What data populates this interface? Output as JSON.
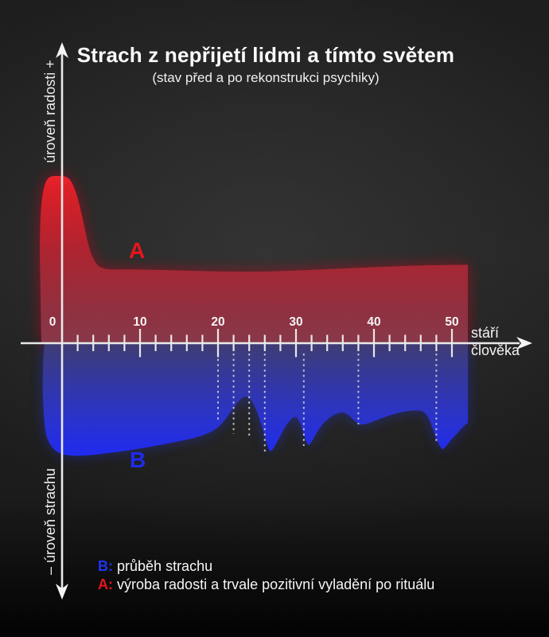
{
  "title": "Strach z nepřijetí lidmi a tímto světem",
  "subtitle": "(stav před a po rekonstrukci psychiky)",
  "axes": {
    "y_top_label": "úroveň radosti +",
    "y_bottom_label": "– úroveň strachu",
    "x_label_line1": "stáří",
    "x_label_line2": "člověka",
    "x_ticks": [
      "0",
      "10",
      "20",
      "30",
      "40",
      "50"
    ]
  },
  "series_labels": {
    "a": "A",
    "b": "B"
  },
  "legend": {
    "b_key": "B:",
    "b_text": "průběh strachu",
    "a_key": "A:",
    "a_text": "výroba radosti a trvale pozitivní vyladění po rituálu"
  },
  "colors": {
    "joy_red_bright": "#e02028",
    "joy_red_dark": "#87394a",
    "fear_blue_bright": "#1f2af0",
    "fear_blue_dark": "#3f3d72",
    "axis_white": "#f0f0f0",
    "background_dark": "#1e1e1e"
  },
  "chart_data": {
    "type": "area",
    "title": "Strach z nepřijetí lidmi a tímto světem",
    "subtitle": "(stav před a po rekonstrukci psychiky)",
    "xlabel": "stáří člověka",
    "ylabel_positive": "úroveň radosti +",
    "ylabel_negative": "– úroveň strachu",
    "xlim": [
      -2.6,
      52
    ],
    "ylim": [
      -10,
      10
    ],
    "x_tick_values": [
      0,
      10,
      20,
      30,
      40,
      50
    ],
    "grid": false,
    "legend_position": "bottom-left",
    "event_marker_ages": [
      20,
      22,
      24,
      26,
      31,
      38,
      48
    ],
    "series": [
      {
        "name": "A",
        "description": "výroba radosti a trvale pozitivní vyladění po rituálu",
        "color": "#e02028",
        "x": [
          -2.6,
          -2,
          -1,
          0,
          1,
          2,
          3,
          4,
          5,
          10,
          20,
          26,
          30,
          40,
          48,
          52
        ],
        "y": [
          4.1,
          9.4,
          10,
          10,
          9.9,
          8.7,
          6.5,
          4.9,
          4.6,
          4.4,
          4.3,
          4.3,
          4.3,
          4.6,
          4.7,
          4.7
        ]
      },
      {
        "name": "B",
        "description": "průběh strachu",
        "color": "#1f2af0",
        "x": [
          -2.3,
          -2,
          -0.8,
          0,
          1,
          3,
          5,
          8,
          12,
          16,
          19,
          20,
          22,
          23,
          24,
          25.5,
          26.3,
          27.5,
          29,
          29.7,
          31.5,
          33,
          35.5,
          37,
          38,
          40,
          43,
          46,
          47.5,
          48.5,
          50,
          51,
          52
        ],
        "y": [
          0,
          -5.5,
          -6.6,
          -6.7,
          -6.7,
          -6.7,
          -6.6,
          -6.5,
          -6.2,
          -5.8,
          -5.4,
          -5.0,
          -3.8,
          -3.3,
          -3.4,
          -5.2,
          -6.4,
          -6.0,
          -4.6,
          -4.4,
          -6.1,
          -5.0,
          -4.2,
          -4.6,
          -4.8,
          -4.5,
          -4.1,
          -4.0,
          -5.0,
          -6.3,
          -5.6,
          -5.0,
          -4.8
        ]
      }
    ]
  }
}
